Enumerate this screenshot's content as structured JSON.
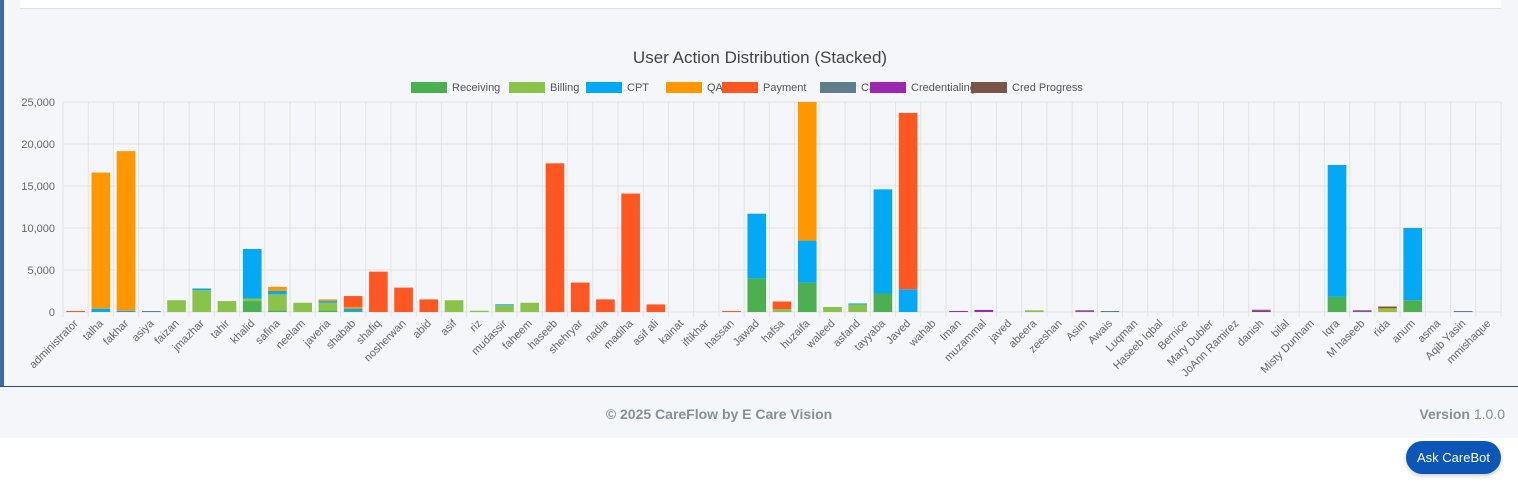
{
  "footer": {
    "copyright": "© 2025 CareFlow by E Care Vision",
    "version_label": "Version",
    "version_number": "1.0.0"
  },
  "carebot": {
    "label": "Ask CareBot"
  },
  "chart_data": {
    "type": "bar",
    "stacked": true,
    "title": "User Action Distribution (Stacked)",
    "legend_position": "top",
    "grid": true,
    "ylim": [
      0,
      25000
    ],
    "yticks": [
      "0",
      "5,000",
      "10,000",
      "15,000",
      "20,000",
      "25,000"
    ],
    "categories": [
      "administrator",
      "talha",
      "fakhar",
      "asiya",
      "faizan",
      "jmazhar",
      "tahir",
      "khalid",
      "safina",
      "neelam",
      "javeria",
      "shabab",
      "shafiq",
      "nosherwan",
      "abid",
      "asif",
      "riz",
      "mudassir",
      "faheem",
      "haseeb",
      "shehryar",
      "nadia",
      "madiha",
      "asif ali",
      "kainat",
      "iftikhar",
      "hassan",
      "Jawad",
      "hafsa",
      "huzaifa",
      "waleed",
      "asfand",
      "tayyaba",
      "Javed",
      "wahab",
      "Iman",
      "muzammal",
      "javed",
      "abeera",
      "zeeshan",
      "Asim",
      "Awais",
      "Luqman",
      "Haseeb Iqbal",
      "Bernice",
      "Mary Dubler",
      "JoAnn Ramirez",
      "danish",
      "bilal",
      "Misty Dunham",
      "Iqra",
      "M haseeb",
      "rida",
      "anum",
      "asma",
      "Aqib Yasin",
      "mmishaque"
    ],
    "series": [
      {
        "name": "Receiving",
        "color": "#4caf50",
        "values": [
          0,
          0,
          0,
          0,
          0,
          0,
          0,
          1300,
          200,
          0,
          200,
          100,
          0,
          0,
          0,
          0,
          0,
          0,
          0,
          0,
          0,
          0,
          0,
          0,
          0,
          0,
          0,
          4000,
          0,
          3500,
          0,
          0,
          2200,
          0,
          0,
          0,
          0,
          0,
          0,
          0,
          0,
          0,
          0,
          0,
          0,
          0,
          0,
          0,
          0,
          0,
          1800,
          0,
          0,
          1400,
          0,
          0,
          0
        ]
      },
      {
        "name": "Billing",
        "color": "#8bc34a",
        "values": [
          0,
          0,
          0,
          0,
          1400,
          2600,
          1300,
          300,
          1900,
          1100,
          900,
          0,
          0,
          0,
          0,
          1400,
          150,
          800,
          1100,
          0,
          0,
          0,
          0,
          0,
          0,
          0,
          0,
          0,
          350,
          0,
          600,
          900,
          0,
          0,
          0,
          0,
          0,
          0,
          200,
          0,
          0,
          0,
          0,
          0,
          0,
          0,
          0,
          0,
          0,
          0,
          0,
          0,
          350,
          0,
          0,
          0,
          0
        ]
      },
      {
        "name": "CPT",
        "color": "#03a9f4",
        "values": [
          0,
          400,
          150,
          0,
          0,
          200,
          0,
          5900,
          400,
          0,
          200,
          300,
          0,
          0,
          0,
          0,
          0,
          100,
          0,
          0,
          0,
          0,
          0,
          0,
          0,
          0,
          0,
          7700,
          0,
          5000,
          0,
          100,
          12400,
          2700,
          0,
          0,
          0,
          0,
          0,
          0,
          0,
          0,
          0,
          0,
          0,
          0,
          0,
          0,
          0,
          0,
          15700,
          0,
          0,
          8600,
          0,
          0,
          0
        ]
      },
      {
        "name": "QA",
        "color": "#ff9800",
        "values": [
          0,
          16200,
          19000,
          0,
          0,
          0,
          0,
          0,
          500,
          0,
          200,
          200,
          0,
          0,
          0,
          0,
          0,
          0,
          0,
          0,
          0,
          0,
          0,
          0,
          0,
          0,
          0,
          0,
          0,
          16500,
          0,
          0,
          0,
          0,
          0,
          0,
          0,
          0,
          0,
          0,
          0,
          0,
          0,
          0,
          0,
          0,
          0,
          0,
          0,
          0,
          0,
          0,
          100,
          0,
          0,
          0,
          0
        ]
      },
      {
        "name": "Payment",
        "color": "#ff5722",
        "values": [
          80,
          0,
          0,
          0,
          0,
          0,
          0,
          0,
          0,
          0,
          0,
          1300,
          4800,
          2900,
          1500,
          0,
          0,
          0,
          0,
          17700,
          3500,
          1500,
          14100,
          900,
          0,
          0,
          80,
          0,
          900,
          0,
          0,
          0,
          0,
          21000,
          0,
          0,
          0,
          0,
          0,
          0,
          0,
          0,
          0,
          0,
          0,
          0,
          0,
          0,
          0,
          0,
          0,
          0,
          0,
          0,
          0,
          0,
          0
        ]
      },
      {
        "name": "Call",
        "color": "#607d8b",
        "values": [
          0,
          0,
          0,
          40,
          0,
          0,
          0,
          0,
          0,
          0,
          0,
          0,
          0,
          0,
          0,
          0,
          0,
          0,
          0,
          0,
          0,
          0,
          0,
          0,
          0,
          0,
          0,
          0,
          0,
          0,
          0,
          0,
          0,
          0,
          0,
          0,
          0,
          0,
          0,
          0,
          80,
          100,
          0,
          0,
          0,
          0,
          0,
          0,
          0,
          0,
          0,
          80,
          0,
          0,
          0,
          40,
          0
        ]
      },
      {
        "name": "Credentialing",
        "color": "#9c27b0",
        "values": [
          0,
          0,
          0,
          0,
          0,
          0,
          0,
          0,
          0,
          0,
          0,
          0,
          0,
          0,
          0,
          0,
          0,
          0,
          0,
          0,
          0,
          0,
          0,
          0,
          0,
          0,
          0,
          0,
          0,
          0,
          0,
          0,
          0,
          0,
          0,
          100,
          250,
          0,
          0,
          0,
          80,
          0,
          0,
          0,
          0,
          0,
          0,
          150,
          0,
          0,
          0,
          100,
          0,
          0,
          0,
          0,
          0
        ]
      },
      {
        "name": "Cred Progress",
        "color": "#795548",
        "values": [
          0,
          0,
          0,
          0,
          0,
          0,
          0,
          0,
          0,
          0,
          0,
          0,
          0,
          0,
          0,
          0,
          0,
          0,
          0,
          0,
          0,
          0,
          0,
          0,
          0,
          0,
          0,
          0,
          0,
          0,
          0,
          0,
          0,
          0,
          0,
          0,
          0,
          0,
          0,
          0,
          0,
          0,
          0,
          0,
          0,
          0,
          0,
          100,
          0,
          0,
          0,
          0,
          200,
          0,
          0,
          0,
          0
        ]
      }
    ]
  }
}
